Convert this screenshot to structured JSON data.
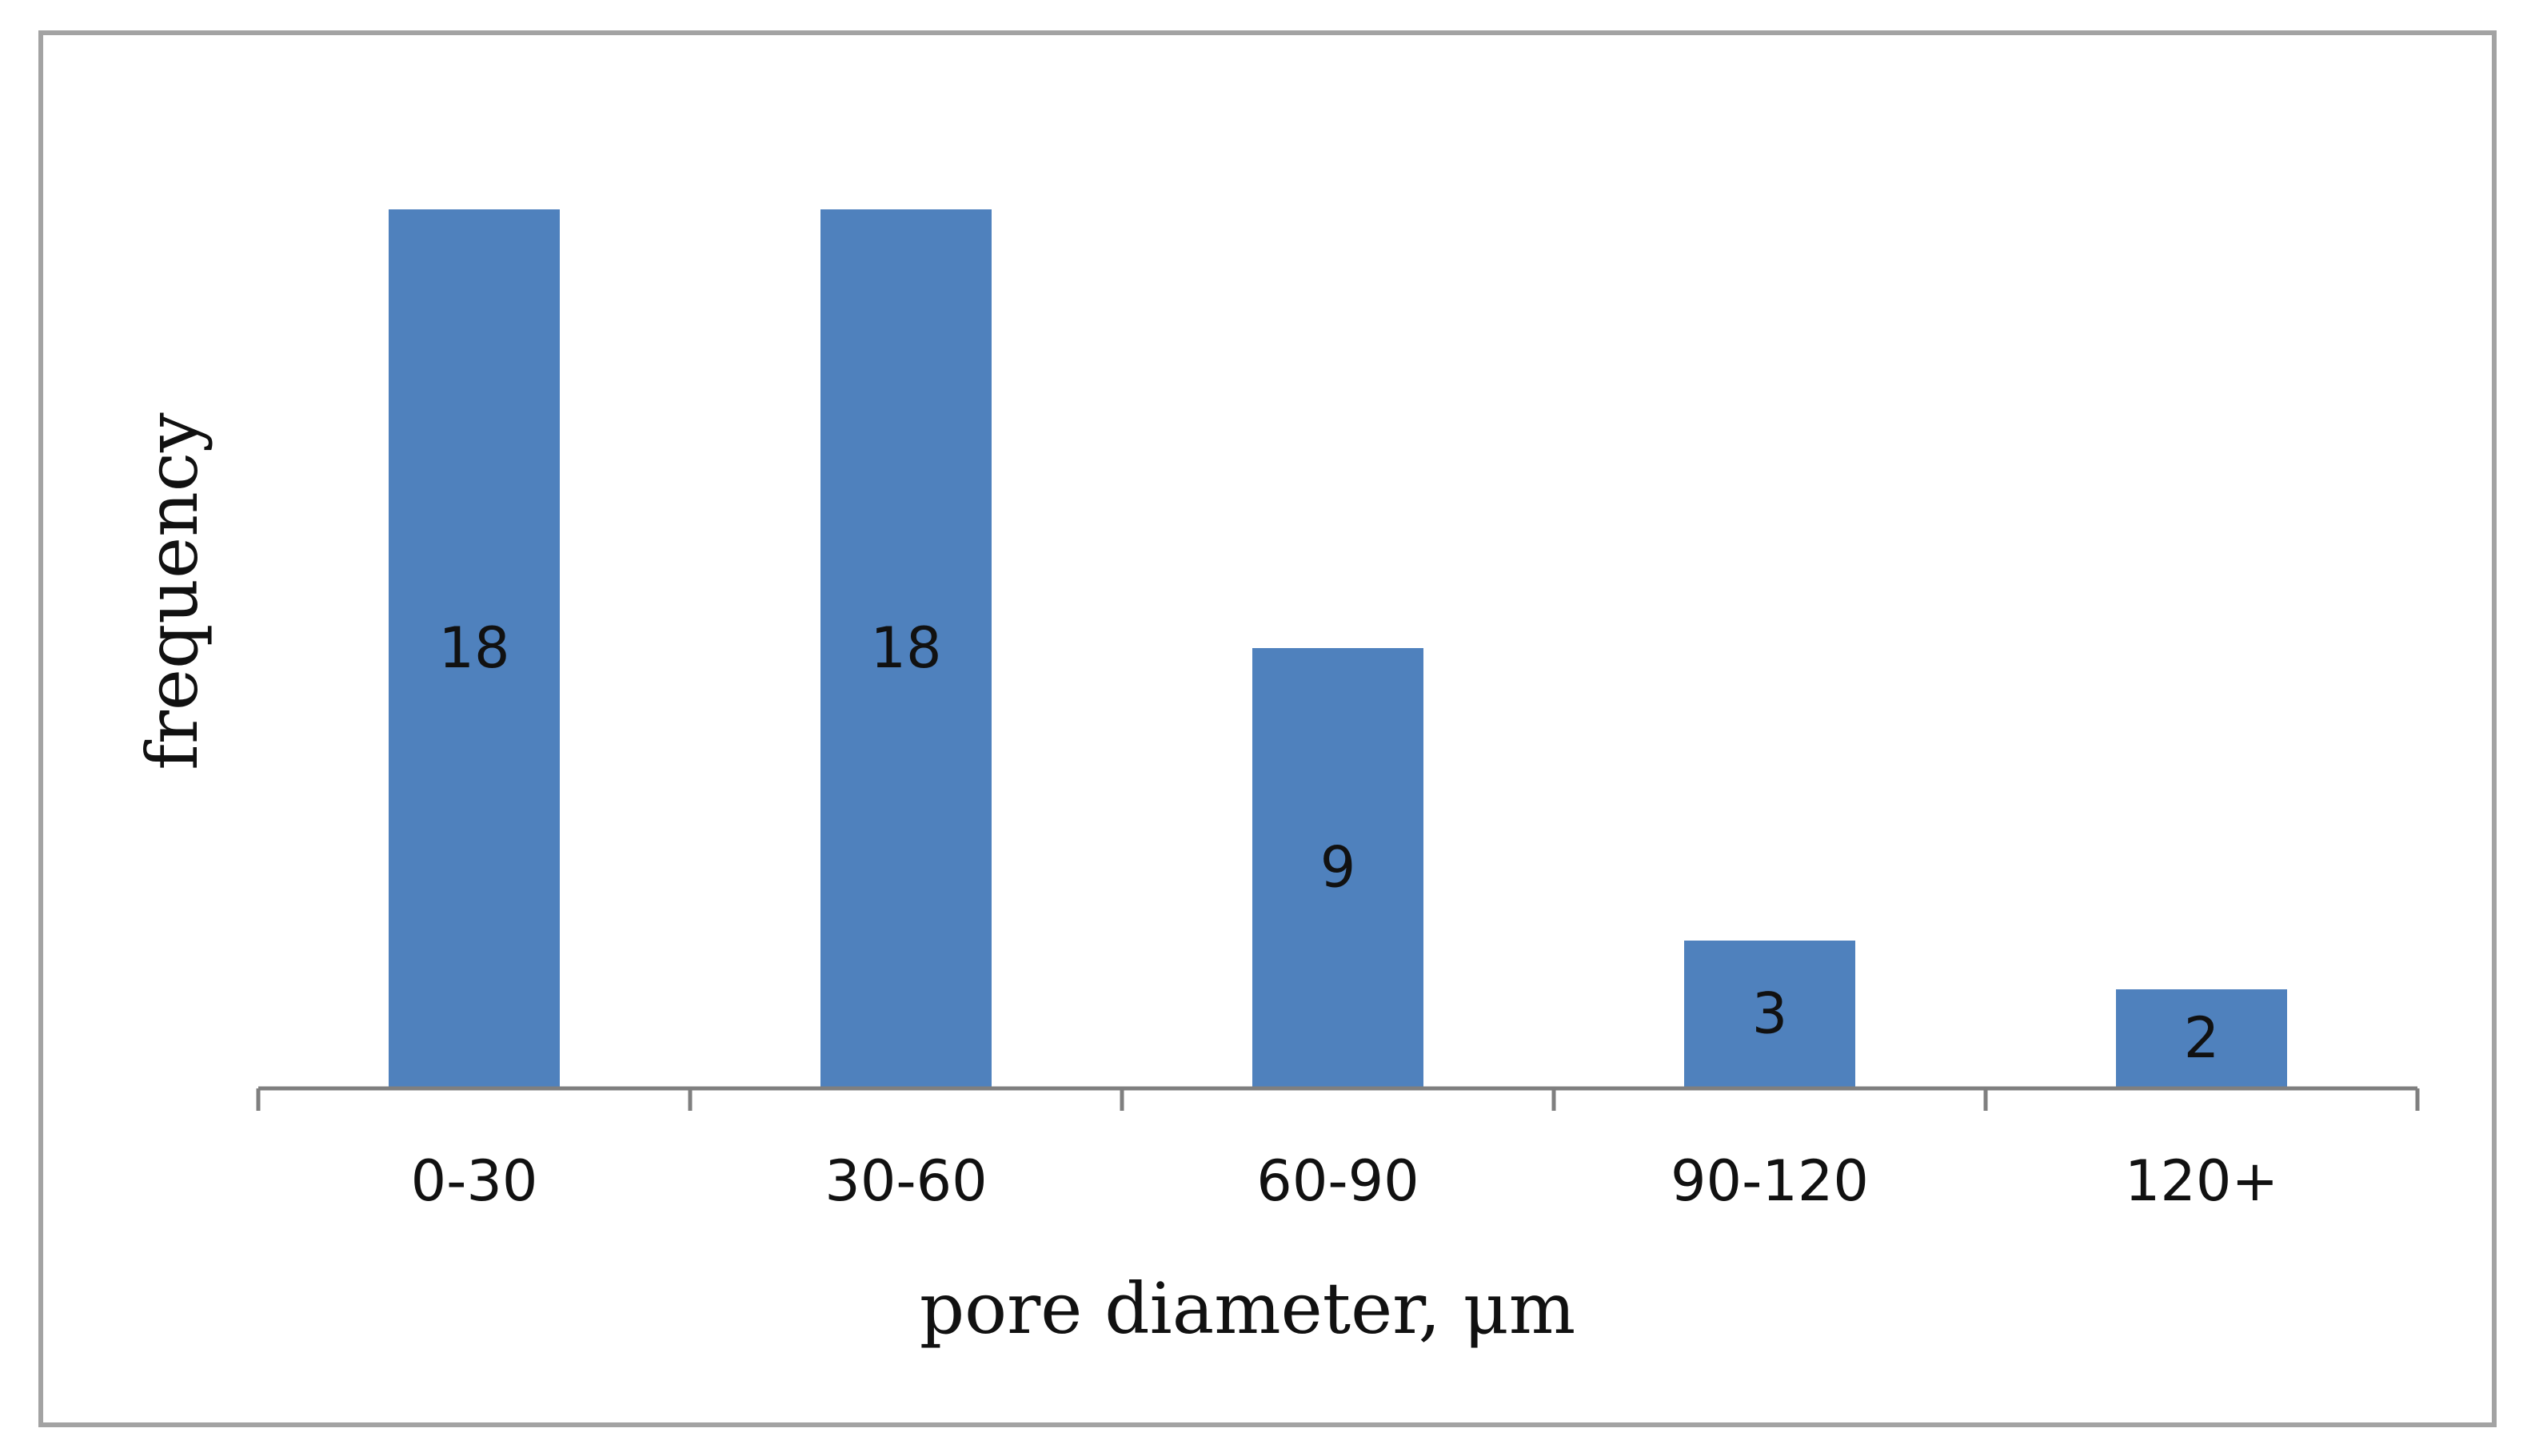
{
  "chart_data": {
    "type": "bar",
    "title": "",
    "xlabel": "pore diameter, μm",
    "ylabel": "frequency",
    "categories": [
      "0-30",
      "30-60",
      "60-90",
      "90-120",
      "120+"
    ],
    "values": [
      18,
      18,
      9,
      3,
      2
    ],
    "ylim": [
      0,
      20
    ],
    "grid": false,
    "data_labels": true,
    "y_axis_visible": false,
    "bar_color": "#4f81bd",
    "axis_color": "#7f7f7f",
    "frame_color": "#a3a3a3"
  }
}
